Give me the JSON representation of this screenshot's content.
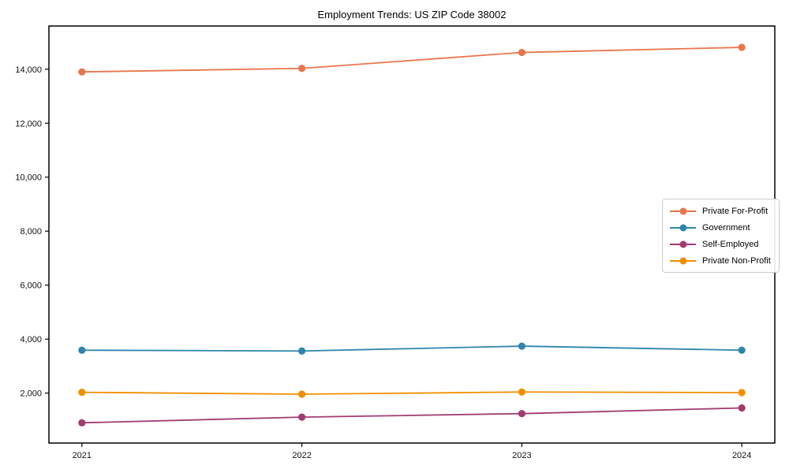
{
  "chart_data": {
    "type": "line",
    "title": "Employment Trends: US ZIP Code 38002",
    "xlabel": "",
    "ylabel": "",
    "x": [
      2021,
      2022,
      2023,
      2024
    ],
    "x_tick_labels": [
      "2021",
      "2022",
      "2023",
      "2024"
    ],
    "y_ticks": [
      2000,
      4000,
      6000,
      8000,
      10000,
      12000,
      14000
    ],
    "y_tick_labels": [
      "2,000",
      "4,000",
      "6,000",
      "8,000",
      "10,000",
      "12,000",
      "14,000"
    ],
    "xlim": [
      2020.85,
      2024.15
    ],
    "ylim": [
      150,
      15600
    ],
    "grid": false,
    "marker": "circle",
    "legend_position": "center right",
    "axis_color": "#000000",
    "series": [
      {
        "name": "Private For-Profit",
        "color": "#E8764D",
        "values": [
          13900,
          14030,
          14620,
          14810
        ]
      },
      {
        "name": "Government",
        "color": "#2E86AB",
        "values": [
          3590,
          3560,
          3740,
          3590
        ]
      },
      {
        "name": "Self-Employed",
        "color": "#A23B72",
        "values": [
          900,
          1110,
          1240,
          1450
        ]
      },
      {
        "name": "Private Non-Profit",
        "color": "#F18F01",
        "values": [
          2030,
          1960,
          2040,
          2020
        ]
      }
    ]
  }
}
